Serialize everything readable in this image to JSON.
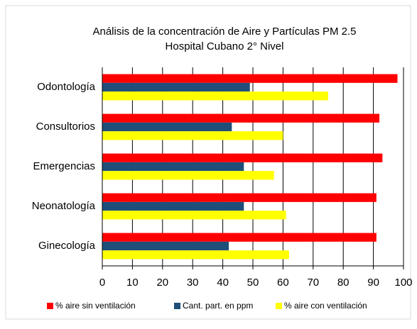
{
  "chart_data": {
    "type": "hbar",
    "title": "Análisis de la concentración de Aire y Partículas PM 2.5",
    "subtitle": "Hospital Cubano 2° Nivel",
    "categories": [
      "Odontología",
      "Consultorios",
      "Emergencias",
      "Neonatología",
      "Ginecología"
    ],
    "series": [
      {
        "name": "% aire sin ventilación",
        "color": "#ff0000",
        "values": [
          98,
          92,
          93,
          91,
          91
        ]
      },
      {
        "name": "Cant. part. en ppm",
        "color": "#1f4e79",
        "values": [
          49,
          43,
          47,
          47,
          42
        ]
      },
      {
        "name": "% aire con ventilación",
        "color": "#ffff00",
        "values": [
          75,
          60,
          57,
          61,
          62
        ]
      }
    ],
    "xlim": [
      0,
      100
    ],
    "xticks": [
      0,
      10,
      20,
      30,
      40,
      50,
      60,
      70,
      80,
      90,
      100
    ],
    "grid": true,
    "legend": "bottom"
  }
}
